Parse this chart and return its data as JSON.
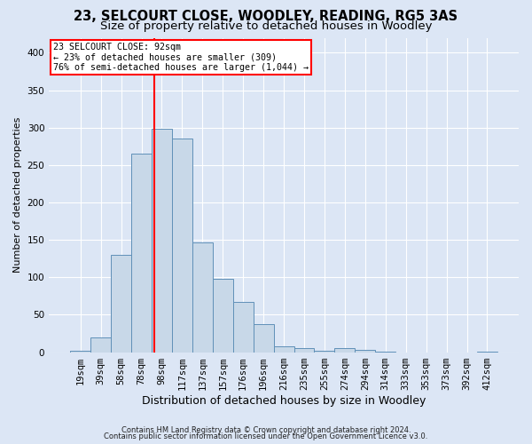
{
  "title1": "23, SELCOURT CLOSE, WOODLEY, READING, RG5 3AS",
  "title2": "Size of property relative to detached houses in Woodley",
  "xlabel": "Distribution of detached houses by size in Woodley",
  "ylabel": "Number of detached properties",
  "bar_labels": [
    "19sqm",
    "39sqm",
    "58sqm",
    "78sqm",
    "98sqm",
    "117sqm",
    "137sqm",
    "157sqm",
    "176sqm",
    "196sqm",
    "216sqm",
    "235sqm",
    "255sqm",
    "274sqm",
    "294sqm",
    "314sqm",
    "333sqm",
    "353sqm",
    "373sqm",
    "392sqm",
    "412sqm"
  ],
  "bar_heights": [
    2,
    20,
    130,
    265,
    298,
    285,
    147,
    98,
    67,
    38,
    8,
    6,
    2,
    5,
    3,
    1,
    0,
    0,
    0,
    0,
    1
  ],
  "bar_color": "#c8d8e8",
  "bar_edge_color": "#6090b8",
  "vline_x": 3.65,
  "annotation_line1": "23 SELCOURT CLOSE: 92sqm",
  "annotation_line2": "← 23% of detached houses are smaller (309)",
  "annotation_line3": "76% of semi-detached houses are larger (1,044) →",
  "footer1": "Contains HM Land Registry data © Crown copyright and database right 2024.",
  "footer2": "Contains public sector information licensed under the Open Government Licence v3.0.",
  "background_color": "#dce6f5",
  "plot_bg_color": "#dce6f5",
  "ylim": [
    0,
    420
  ],
  "yticks": [
    0,
    50,
    100,
    150,
    200,
    250,
    300,
    350,
    400
  ],
  "grid_color": "#ffffff",
  "title1_fontsize": 10.5,
  "title2_fontsize": 9.5,
  "xlabel_fontsize": 9,
  "ylabel_fontsize": 8,
  "tick_fontsize": 7.5,
  "footer_fontsize": 6
}
